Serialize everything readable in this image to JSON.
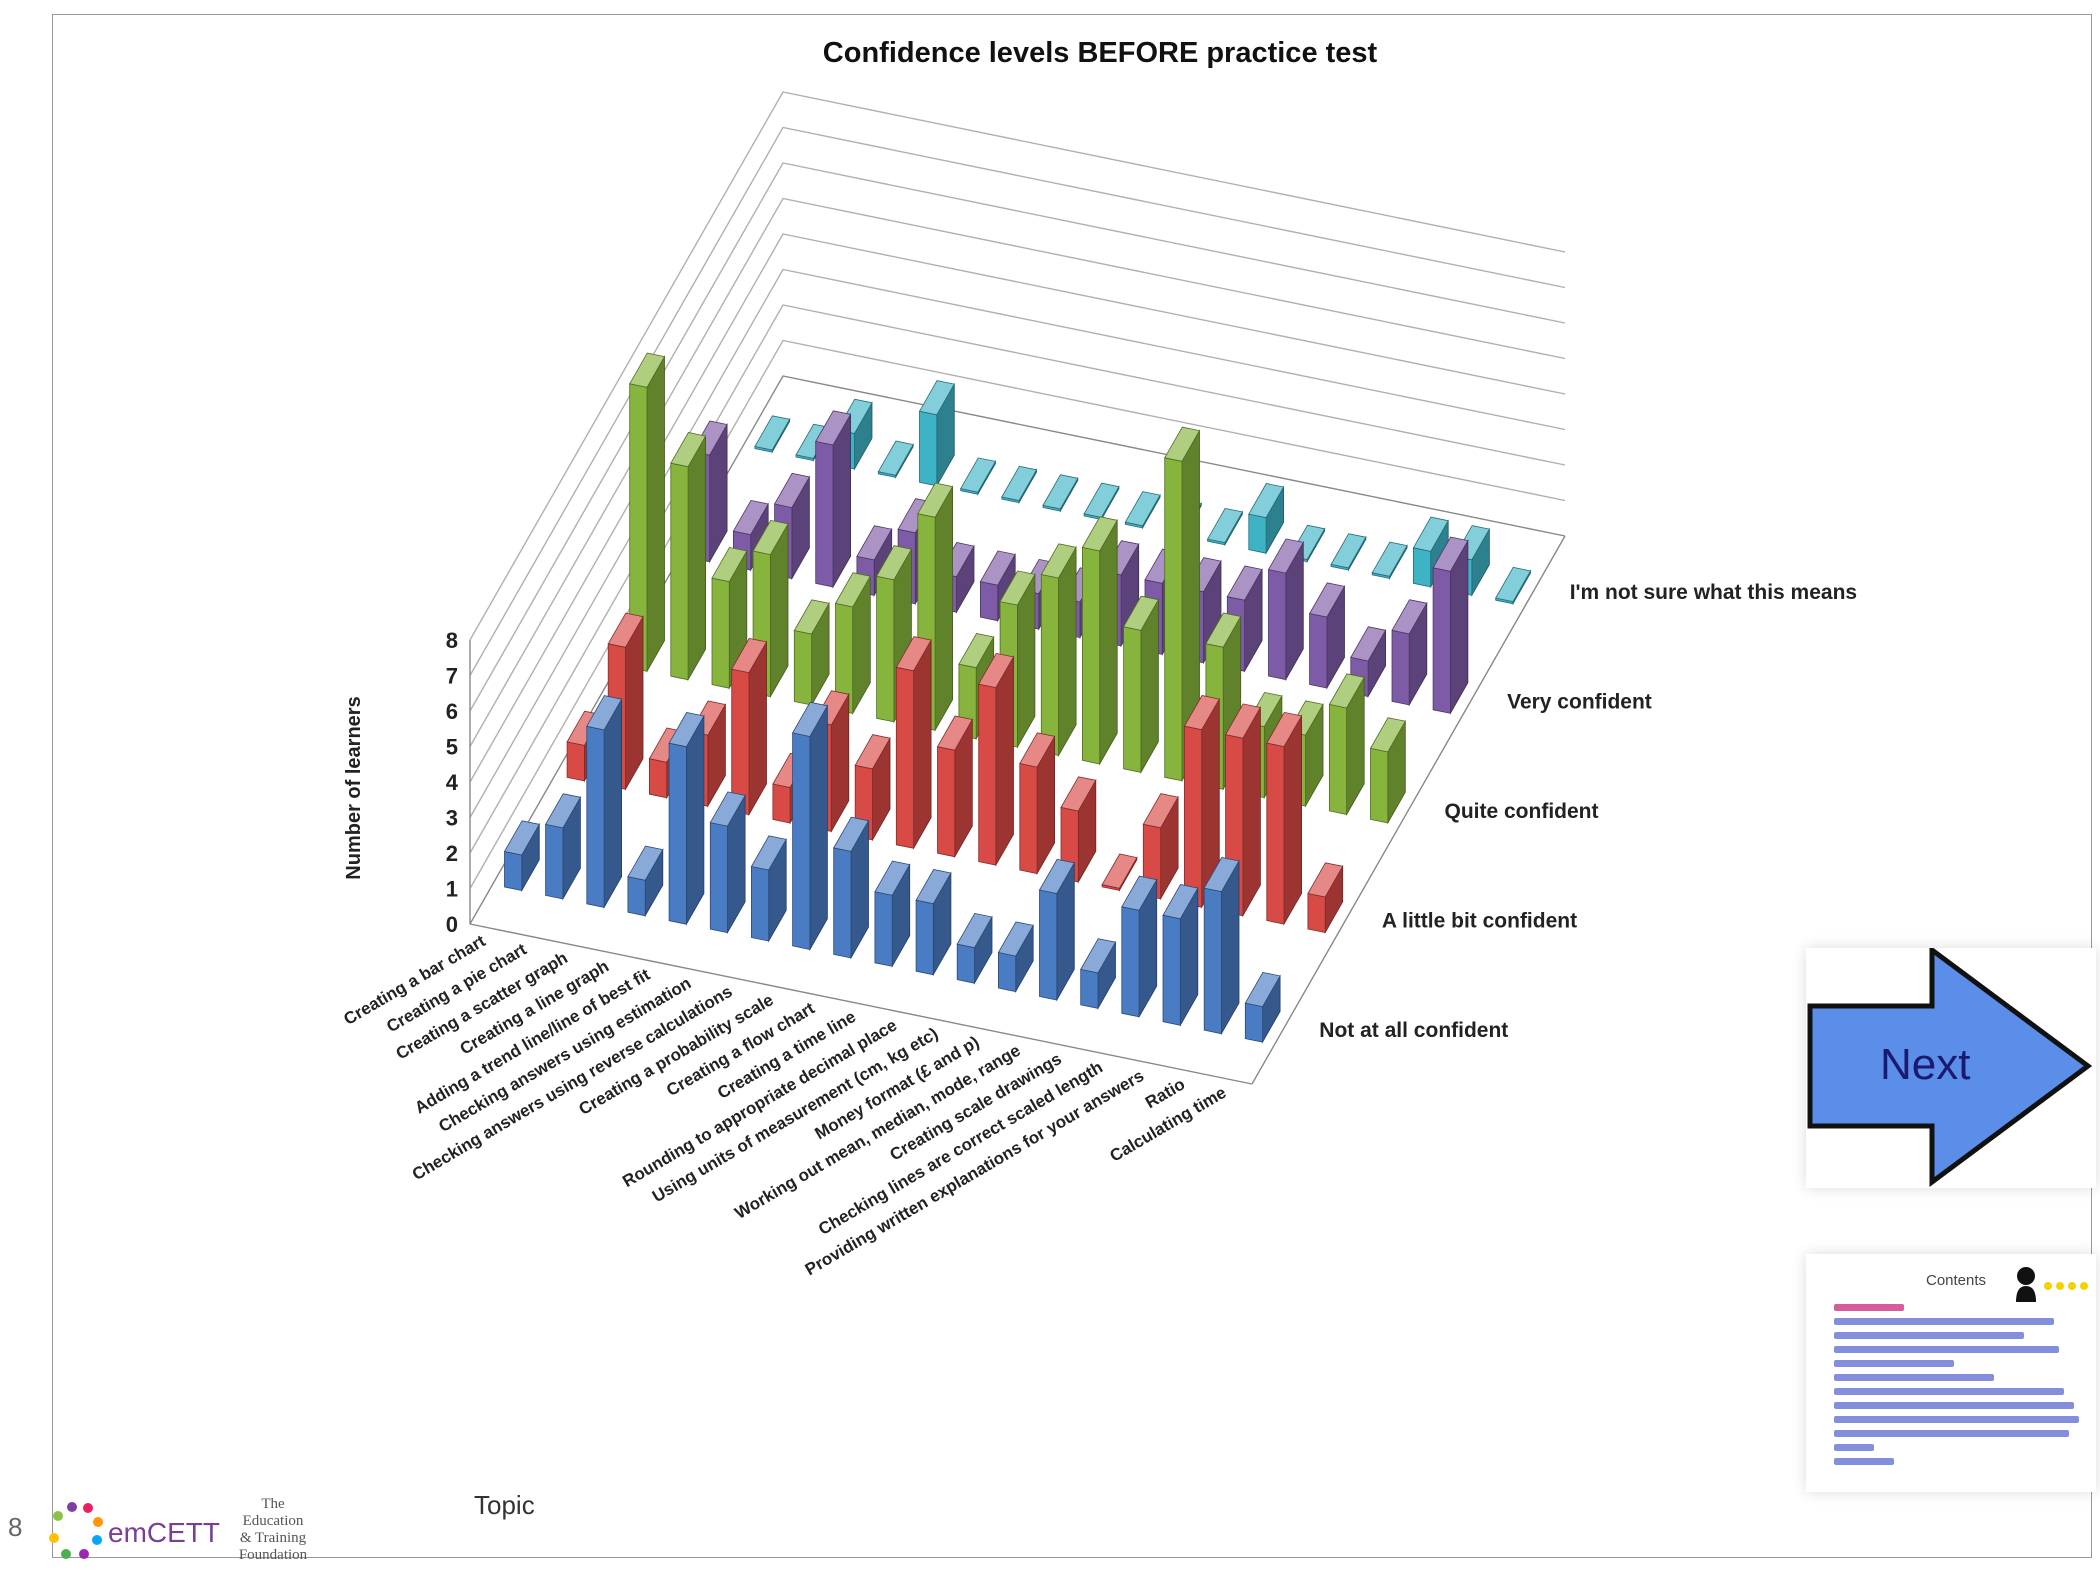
{
  "slide": {
    "page_number": "8",
    "topic_label": "Topic",
    "next_label": "Next",
    "contents_label": "Contents",
    "logo_emcett_text": "emCETT",
    "logo_etf_text": "The Education & Training Foundation"
  },
  "chart_data": {
    "type": "bar3d",
    "title": "Confidence levels BEFORE practice test",
    "ylabel": "Number of learners",
    "xlabel": "Topic",
    "ylim": [
      0,
      8
    ],
    "yticks": [
      "0",
      "1",
      "2",
      "3",
      "4",
      "5",
      "6",
      "7",
      "8"
    ],
    "categories": [
      "Creating a bar chart",
      "Creating a pie chart",
      "Creating a scatter graph",
      "Creating a line graph",
      "Adding a trend line/line of best fit",
      "Checking answers using estimation",
      "Checking answers using reverse calculations",
      "Creating a probability scale",
      "Creating a flow chart",
      "Creating a time line",
      "Rounding to appropriate decimal place",
      "Using units of measurement (cm, kg etc)",
      "Money format (£ and p)",
      "Working out mean, median, mode, range",
      "Creating scale drawings",
      "Checking lines are correct scaled length",
      "Providing written explanations for your answers",
      "Ratio",
      "Calculating time"
    ],
    "series": [
      {
        "name": "Not at all confident",
        "color": "#4a7cc4",
        "values": [
          1,
          2,
          5,
          1,
          5,
          3,
          2,
          6,
          3,
          2,
          2,
          1,
          1,
          3,
          1,
          3,
          3,
          4,
          1
        ]
      },
      {
        "name": "A little bit confident",
        "color": "#d84a45",
        "values": [
          1,
          4,
          1,
          2,
          4,
          1,
          3,
          2,
          5,
          3,
          5,
          3,
          2,
          0,
          2,
          5,
          5,
          5,
          1
        ]
      },
      {
        "name": "Quite confident",
        "color": "#86b43c",
        "values": [
          8,
          6,
          3,
          4,
          2,
          3,
          4,
          6,
          2,
          4,
          5,
          6,
          4,
          9,
          4,
          2,
          2,
          3,
          2
        ]
      },
      {
        "name": "Very confident",
        "color": "#7e5ba6",
        "values": [
          3,
          1,
          2,
          4,
          1,
          2,
          1,
          1,
          1,
          1,
          2,
          2,
          2,
          2,
          3,
          2,
          1,
          2,
          4
        ]
      },
      {
        "name": "I'm not sure what this means",
        "color": "#3fb3c6",
        "values": [
          0,
          0,
          1,
          0,
          2,
          0,
          0,
          0,
          0,
          0,
          0,
          0,
          1,
          0,
          0,
          0,
          1,
          1,
          0
        ]
      }
    ]
  }
}
